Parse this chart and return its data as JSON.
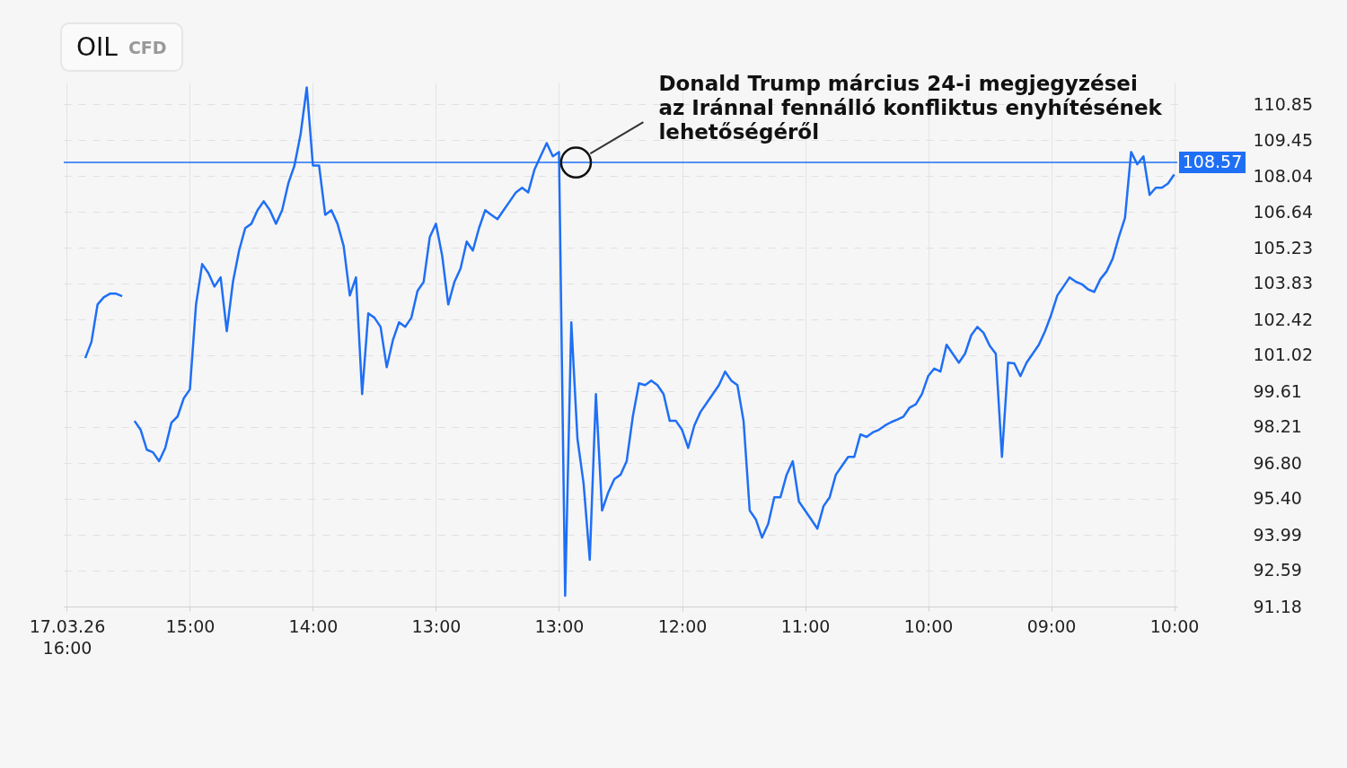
{
  "chart_data": {
    "type": "line",
    "title": "OIL",
    "subtitle": "CFD",
    "categories": [
      "17.03.26\n16:00",
      null,
      null,
      null,
      null,
      null,
      null,
      null,
      null,
      null,
      null,
      null,
      null,
      null,
      null,
      null,
      null,
      null,
      null,
      null,
      "15:00",
      null,
      null,
      null,
      null,
      null,
      null,
      null,
      null,
      null,
      null,
      null,
      null,
      null,
      null,
      null,
      null,
      null,
      null,
      null,
      "14:00",
      null,
      null,
      null,
      null,
      null,
      null,
      null,
      null,
      null,
      null,
      null,
      null,
      null,
      null,
      null,
      null,
      null,
      null,
      null,
      "13:00",
      null,
      null,
      null,
      null,
      null,
      null,
      null,
      null,
      null,
      null,
      null,
      null,
      null,
      null,
      null,
      null,
      null,
      null,
      null,
      "13:00",
      null,
      null,
      null,
      null,
      null,
      null,
      null,
      null,
      null,
      null,
      null,
      null,
      null,
      null,
      null,
      null,
      null,
      null,
      null,
      "12:00",
      null,
      null,
      null,
      null,
      null,
      null,
      null,
      null,
      null,
      null,
      null,
      null,
      null,
      null,
      null,
      null,
      null,
      null,
      null,
      "11:00",
      null,
      null,
      null,
      null,
      null,
      null,
      null,
      null,
      null,
      null,
      null,
      null,
      null,
      null,
      null,
      null,
      null,
      null,
      null,
      "10:00",
      null,
      null,
      null,
      null,
      null,
      null,
      null,
      null,
      null,
      null,
      null,
      null,
      null,
      null,
      null,
      null,
      null,
      null,
      null,
      "09:00",
      null,
      null,
      null,
      null,
      null,
      null,
      null,
      null,
      null,
      null,
      null,
      null,
      null,
      null,
      null,
      null,
      null,
      null,
      null,
      "10:00"
    ],
    "series": [
      {
        "color": "#1f6ff5",
        "values": [
          null,
          null,
          null,
          100.91,
          101.54,
          103.01,
          103.29,
          103.43,
          103.43,
          103.33,
          null,
          98.45,
          98.1,
          97.32,
          97.22,
          96.87,
          97.39,
          98.38,
          98.62,
          99.33,
          99.68,
          103.01,
          104.59,
          104.24,
          103.71,
          104.07,
          101.96,
          103.89,
          105.12,
          106.0,
          106.17,
          106.7,
          107.05,
          106.7,
          106.17,
          106.7,
          107.75,
          108.45,
          109.68,
          111.51,
          108.45,
          108.45,
          106.52,
          106.7,
          106.17,
          105.29,
          103.36,
          104.07,
          99.5,
          102.66,
          102.49,
          102.13,
          100.55,
          101.61,
          102.31,
          102.13,
          102.49,
          103.54,
          103.89,
          105.65,
          106.17,
          104.94,
          103.01,
          103.89,
          104.42,
          105.47,
          105.12,
          106.0,
          106.7,
          106.52,
          106.35,
          106.7,
          107.05,
          107.4,
          107.58,
          107.4,
          108.28,
          108.81,
          109.33,
          108.81,
          108.98,
          91.6,
          102.31,
          97.75,
          95.99,
          93.01,
          99.5,
          94.94,
          95.64,
          96.17,
          96.34,
          96.87,
          98.62,
          99.92,
          99.85,
          100.03,
          99.85,
          99.5,
          98.45,
          98.45,
          98.1,
          97.39,
          98.27,
          98.8,
          99.15,
          99.5,
          99.85,
          100.38,
          100.03,
          99.85,
          98.45,
          94.94,
          94.59,
          93.88,
          94.41,
          95.46,
          95.46,
          96.34,
          96.87,
          95.29,
          94.94,
          94.59,
          94.23,
          95.11,
          95.46,
          96.34,
          96.69,
          97.04,
          97.04,
          97.92,
          97.82,
          98.0,
          98.1,
          98.27,
          98.4,
          98.5,
          98.62,
          98.97,
          99.1,
          99.5,
          100.2,
          100.5,
          100.38,
          101.43,
          101.08,
          100.73,
          101.08,
          101.8,
          102.13,
          101.9,
          101.4,
          101.08,
          97.04,
          100.73,
          100.7,
          100.2,
          100.73,
          101.08,
          101.43,
          101.96,
          102.6,
          103.36,
          103.71,
          104.07,
          103.9,
          103.8,
          103.6,
          103.5,
          104.0,
          104.3,
          104.8,
          105.65,
          106.4,
          108.98,
          108.5,
          108.81,
          107.3,
          107.58,
          107.58,
          107.75,
          108.1
        ]
      }
    ],
    "ylim": [
      91.18,
      111.7
    ],
    "yticks": [
      110.85,
      109.45,
      108.04,
      106.64,
      105.23,
      103.83,
      102.42,
      101.02,
      99.61,
      98.21,
      {
        "value": 96.8,
        "label": "96.80"
      },
      {
        "value": 95.4,
        "label": "95.40"
      },
      93.99,
      92.59,
      91.18
    ],
    "grid": true,
    "ref_lines": [
      {
        "axis": "y",
        "value": 108.57,
        "label": "108.57",
        "color": "#1f6ff5"
      }
    ],
    "annotations": [
      {
        "text": "Donald Trump március 24-i megjegyzései\naz Iránnal fennálló konfliktus enyhítésének\nlehetőségéről",
        "y": 108.57
      }
    ]
  }
}
